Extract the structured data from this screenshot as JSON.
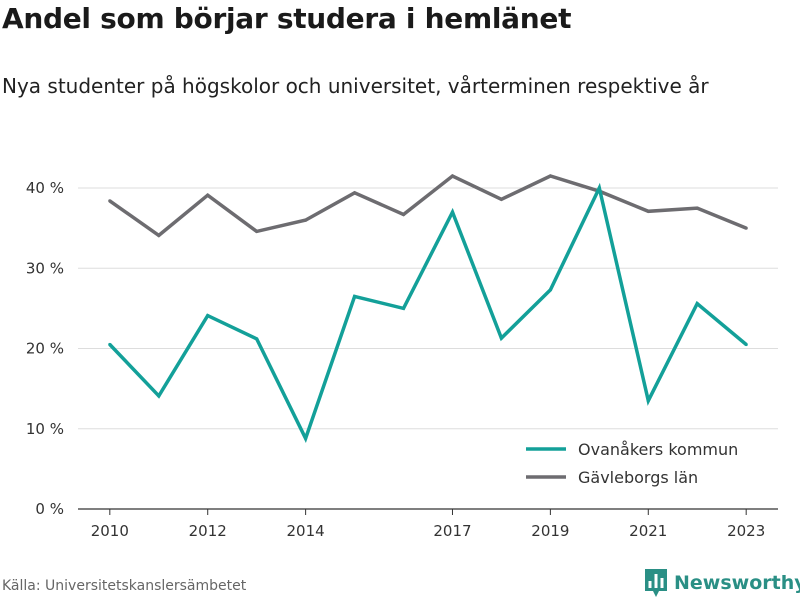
{
  "header": {
    "title": "Andel som börjar studera i hemlänet",
    "subtitle": "Nya studenter på högskolor och universitet, vårterminen respektive år"
  },
  "footer": {
    "source": "Källa: Universitetskanslersämbetet",
    "brand": "Newsworthy",
    "brand_icon": "bar-chart-logo-icon"
  },
  "colors": {
    "ovanaker": "#13a099",
    "gavleborg": "#6d6c70",
    "grid": "#dddddd",
    "axis": "#333333",
    "brand": "#2a8f85"
  },
  "chart_data": {
    "type": "line",
    "title": "Andel som börjar studera i hemlänet",
    "subtitle": "Nya studenter på högskolor och universitet, vårterminen respektive år",
    "x": [
      2010,
      2011,
      2012,
      2013,
      2014,
      2015,
      2016,
      2017,
      2018,
      2019,
      2020,
      2021,
      2022,
      2023
    ],
    "x_ticks": [
      2010,
      2012,
      2014,
      2017,
      2019,
      2021,
      2023
    ],
    "x_tick_labels": [
      "2010",
      "2012",
      "2014",
      "2017",
      "2019",
      "2021",
      "2023"
    ],
    "xlim": [
      2009.35,
      2023.65
    ],
    "y_ticks": [
      0,
      10,
      20,
      30,
      40
    ],
    "y_tick_labels": [
      "0 %",
      "10 %",
      "20 %",
      "30 %",
      "40 %"
    ],
    "ylim": [
      0,
      41
    ],
    "grid": true,
    "legend_position": "bottom-right",
    "series": [
      {
        "name": "Ovanåkers kommun",
        "color": "#13a099",
        "values": [
          20.5,
          14.1,
          24.1,
          21.2,
          8.8,
          26.5,
          25.0,
          37.0,
          21.3,
          27.3,
          40.0,
          13.5,
          25.6,
          20.5
        ]
      },
      {
        "name": "Gävleborgs län",
        "color": "#6d6c70",
        "values": [
          38.4,
          34.1,
          39.1,
          34.6,
          36.0,
          39.4,
          36.7,
          41.5,
          38.6,
          41.5,
          39.6,
          37.1,
          37.5,
          35.0
        ]
      }
    ]
  }
}
